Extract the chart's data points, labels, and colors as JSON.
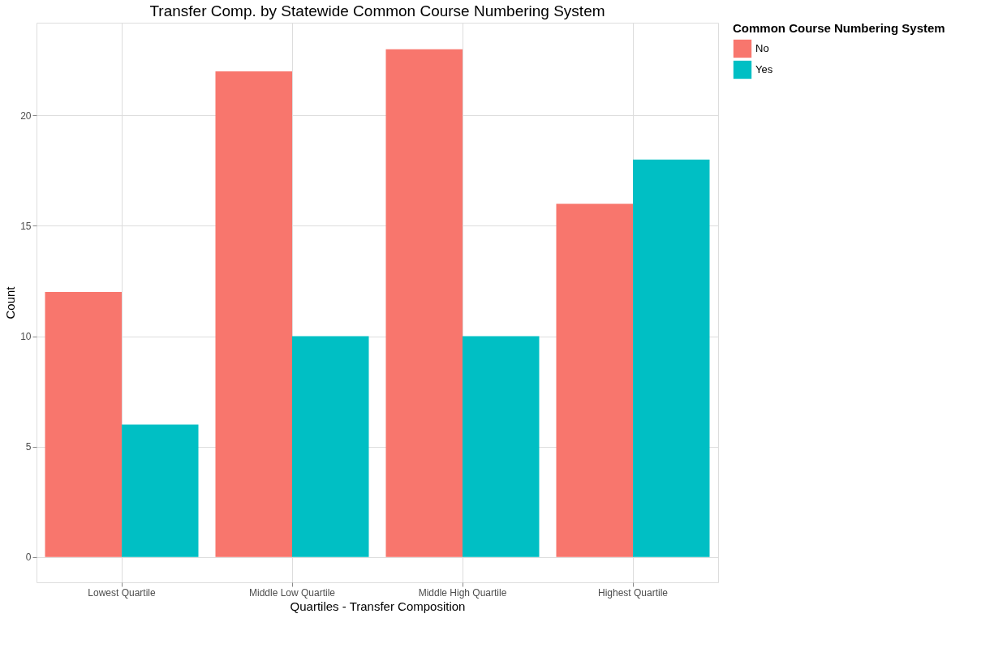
{
  "chart_data": {
    "type": "bar",
    "title": "Transfer Comp. by Statewide Common Course Numbering System",
    "xlabel": "Quartiles - Transfer Composition",
    "ylabel": "Count",
    "legend_title": "Common Course Numbering System",
    "categories": [
      "Lowest Quartile",
      "Middle Low Quartile",
      "Middle High Quartile",
      "Highest Quartile"
    ],
    "series": [
      {
        "name": "No",
        "color": "#f8766d",
        "values": [
          12,
          22,
          23,
          16
        ]
      },
      {
        "name": "Yes",
        "color": "#00bfc4",
        "values": [
          6,
          10,
          10,
          18
        ]
      }
    ],
    "ylim": [
      -1.15,
      24.2
    ],
    "yticks": [
      0,
      5,
      10,
      15,
      20
    ],
    "grid": true,
    "legend": "right"
  }
}
